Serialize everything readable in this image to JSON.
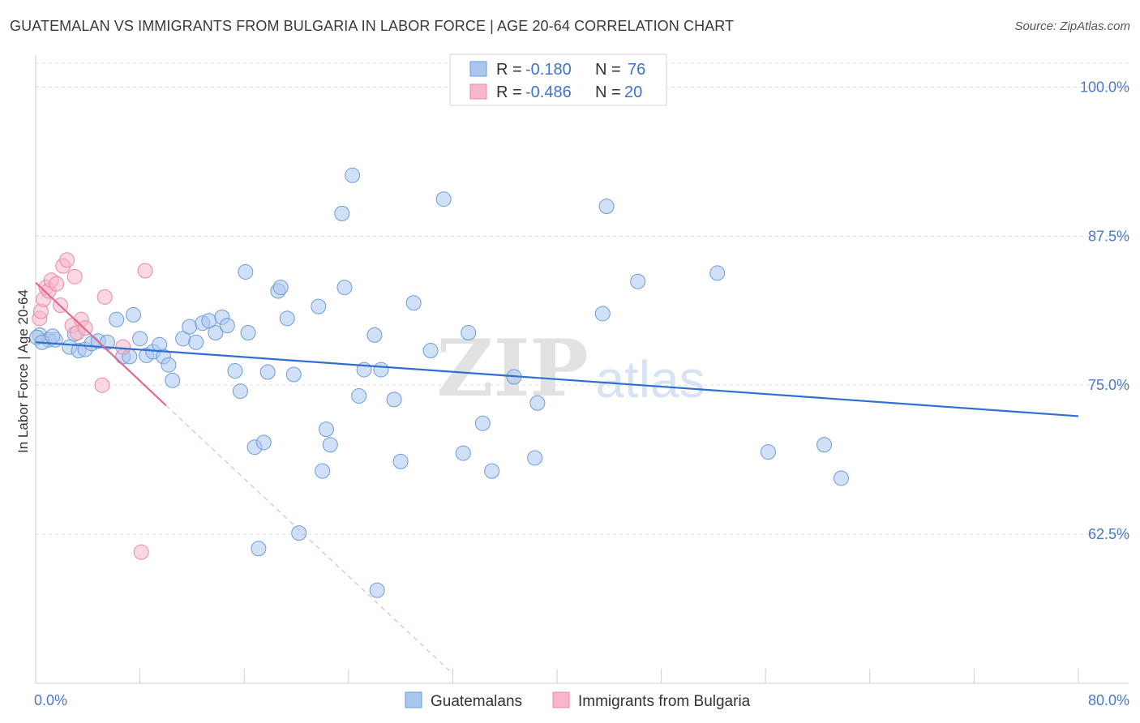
{
  "header": {
    "title": "GUATEMALAN VS IMMIGRANTS FROM BULGARIA IN LABOR FORCE | AGE 20-64 CORRELATION CHART",
    "source": "Source: ZipAtlas.com"
  },
  "watermark": {
    "zip": "ZIP",
    "atlas": "atlas"
  },
  "chart_data": {
    "type": "scatter",
    "title": "GUATEMALAN VS IMMIGRANTS FROM BULGARIA IN LABOR FORCE | AGE 20-64 CORRELATION CHART",
    "ylabel": "In Labor Force | Age 20-64",
    "xlim": [
      0,
      80
    ],
    "ylim": [
      50,
      102
    ],
    "x_tick_labels": [
      {
        "value": 0,
        "label": "0.0%"
      },
      {
        "value": 80,
        "label": "80.0%"
      }
    ],
    "y_tick_labels": [
      {
        "value": 100,
        "label": "100.0%"
      },
      {
        "value": 87.5,
        "label": "87.5%"
      },
      {
        "value": 75,
        "label": "75.0%"
      },
      {
        "value": 62.5,
        "label": "62.5%"
      }
    ],
    "grid": true,
    "legend_position": "top-center",
    "stats": [
      {
        "r_label": "R =",
        "r": "-0.180",
        "n_label": "N =",
        "n": "76"
      },
      {
        "r_label": "R =",
        "r": "-0.486",
        "n_label": "N =",
        "n": "20"
      }
    ],
    "series": [
      {
        "name": "Guatemalans",
        "color": "#a9c6ef",
        "stroke": "#6f9bd8",
        "line_color": "#2f6fcf",
        "trend": [
          [
            0,
            78.6
          ],
          [
            80,
            72.4
          ]
        ],
        "points": [
          [
            0.3,
            79.2
          ],
          [
            1.0,
            78.8
          ],
          [
            1.5,
            78.8
          ],
          [
            2.6,
            78.2
          ],
          [
            3.0,
            79.3
          ],
          [
            3.3,
            77.9
          ],
          [
            3.8,
            78.0
          ],
          [
            4.3,
            78.5
          ],
          [
            4.8,
            78.7
          ],
          [
            5.5,
            78.6
          ],
          [
            6.2,
            80.5
          ],
          [
            6.7,
            77.4
          ],
          [
            7.2,
            77.4
          ],
          [
            7.5,
            80.9
          ],
          [
            8.0,
            78.9
          ],
          [
            8.5,
            77.5
          ],
          [
            9.0,
            77.8
          ],
          [
            9.5,
            78.4
          ],
          [
            9.8,
            77.4
          ],
          [
            10.2,
            76.7
          ],
          [
            10.5,
            75.4
          ],
          [
            11.3,
            78.9
          ],
          [
            11.8,
            79.9
          ],
          [
            12.3,
            78.6
          ],
          [
            12.8,
            80.2
          ],
          [
            13.3,
            80.4
          ],
          [
            13.8,
            79.4
          ],
          [
            14.3,
            80.7
          ],
          [
            14.7,
            80.0
          ],
          [
            15.3,
            76.2
          ],
          [
            15.7,
            74.5
          ],
          [
            16.1,
            84.5
          ],
          [
            16.3,
            79.4
          ],
          [
            16.8,
            69.8
          ],
          [
            17.1,
            61.3
          ],
          [
            17.5,
            70.2
          ],
          [
            17.8,
            76.1
          ],
          [
            18.6,
            82.9
          ],
          [
            18.8,
            83.2
          ],
          [
            19.3,
            80.6
          ],
          [
            19.8,
            75.9
          ],
          [
            20.2,
            62.6
          ],
          [
            21.7,
            81.6
          ],
          [
            22.0,
            67.8
          ],
          [
            22.3,
            71.3
          ],
          [
            22.6,
            70.0
          ],
          [
            23.5,
            89.4
          ],
          [
            23.7,
            83.2
          ],
          [
            24.3,
            92.6
          ],
          [
            24.8,
            74.1
          ],
          [
            25.2,
            76.3
          ],
          [
            26.0,
            79.2
          ],
          [
            26.2,
            57.8
          ],
          [
            26.5,
            76.3
          ],
          [
            27.5,
            73.8
          ],
          [
            28.0,
            68.6
          ],
          [
            29.0,
            81.9
          ],
          [
            30.3,
            77.9
          ],
          [
            31.3,
            90.6
          ],
          [
            32.8,
            69.3
          ],
          [
            33.2,
            79.4
          ],
          [
            34.3,
            71.8
          ],
          [
            35.0,
            67.8
          ],
          [
            36.7,
            75.7
          ],
          [
            38.3,
            68.9
          ],
          [
            38.5,
            73.5
          ],
          [
            43.5,
            81.0
          ],
          [
            43.8,
            90.0
          ],
          [
            46.2,
            83.7
          ],
          [
            52.3,
            84.4
          ],
          [
            56.2,
            69.4
          ],
          [
            60.5,
            70.0
          ],
          [
            61.8,
            67.2
          ],
          [
            0.1,
            79.0
          ],
          [
            0.5,
            78.6
          ],
          [
            1.3,
            79.1
          ]
        ]
      },
      {
        "name": "Immigrants from Bulgaria",
        "color": "#f7b6c9",
        "stroke": "#e88aa7",
        "line_color": "#e06a94",
        "trend": [
          [
            0,
            83.6
          ],
          [
            10,
            73.3
          ]
        ],
        "trend_ext": [
          [
            10,
            73.3
          ],
          [
            32,
            50.8
          ]
        ],
        "points": [
          [
            0.3,
            80.6
          ],
          [
            0.4,
            81.2
          ],
          [
            0.6,
            82.2
          ],
          [
            0.8,
            83.2
          ],
          [
            1.0,
            82.9
          ],
          [
            1.2,
            83.8
          ],
          [
            1.6,
            83.5
          ],
          [
            1.9,
            81.7
          ],
          [
            2.1,
            85.0
          ],
          [
            2.4,
            85.5
          ],
          [
            2.8,
            80.0
          ],
          [
            3.0,
            84.1
          ],
          [
            3.2,
            79.4
          ],
          [
            3.5,
            80.5
          ],
          [
            3.8,
            79.8
          ],
          [
            5.1,
            75.0
          ],
          [
            5.3,
            82.4
          ],
          [
            6.7,
            78.2
          ],
          [
            8.1,
            61.0
          ],
          [
            8.4,
            84.6
          ]
        ]
      }
    ]
  }
}
